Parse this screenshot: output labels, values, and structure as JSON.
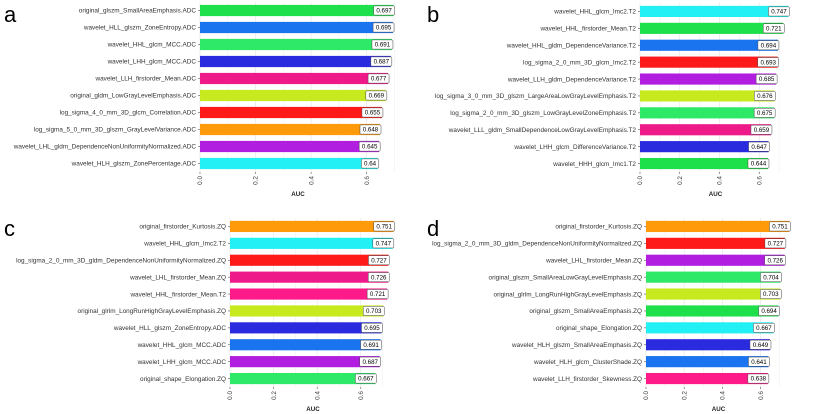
{
  "chart_data": [
    {
      "type": "bar",
      "panel": "a",
      "xlabel": "AUC",
      "xlim": [
        0,
        0.72
      ],
      "xticks": [
        "0.0",
        "0.2",
        "0.4",
        "0.6"
      ],
      "grid": true,
      "categories": [
        "original_glszm_SmallAreaEmphasis.ADC",
        "wavelet_HLL_glszm_ZoneEntropy.ADC",
        "wavelet_HHL_glcm_MCC.ADC",
        "wavelet_LHH_glcm_MCC.ADC",
        "wavelet_LLH_firstorder_Mean.ADC",
        "original_gldm_LowGrayLevelEmphasis.ADC",
        "log_sigma_4_0_mm_3D_glcm_Correlation.ADC",
        "log_sigma_5_0_mm_3D_glszm_GrayLevelVariance.ADC",
        "wavelet_LHL_gldm_DependenceNonUniformityNormalized.ADC",
        "wavelet_HLH_glszm_ZonePercentage.ADC"
      ],
      "values": [
        0.697,
        0.695,
        0.691,
        0.687,
        0.677,
        0.669,
        0.655,
        0.648,
        0.645,
        0.64
      ],
      "value_labels": [
        "0.697",
        "0.695",
        "0.691",
        "0.687",
        "0.677",
        "0.669",
        "0.655",
        "0.648",
        "0.645",
        "0.64"
      ],
      "colors": [
        "#1ee04a",
        "#1a74f0",
        "#2ee868",
        "#2a2adf",
        "#ef1a8a",
        "#c6ea1e",
        "#ff1a1a",
        "#ff9a0a",
        "#b21ee0",
        "#22f0f4"
      ]
    },
    {
      "type": "bar",
      "panel": "b",
      "xlabel": "AUC",
      "xlim": [
        0,
        0.78
      ],
      "xticks": [
        "0.0",
        "0.2",
        "0.4",
        "0.6"
      ],
      "grid": true,
      "categories": [
        "wavelet_HHL_glcm_Imc2.T2",
        "wavelet_HHL_firstorder_Mean.T2",
        "wavelet_HHL_gldm_DependenceVariance.T2",
        "log_sigma_2_0_mm_3D_glcm_Imc2.T2",
        "wavelet_LLH_gldm_DependenceVariance.T2",
        "log_sigma_3_0_mm_3D_glszm_LargeAreaLowGrayLevelEmphasis.T2",
        "log_sigma_2_0_mm_3D_glszm_LowGrayLevelZoneEmphasis.T2",
        "wavelet_LLL_gldm_SmallDependenceLowGrayLevelEmphasis.T2",
        "wavelet_LHH_glcm_DifferenceVariance.T2",
        "wavelet_HHH_glcm_Imc1.T2"
      ],
      "values": [
        0.747,
        0.721,
        0.694,
        0.693,
        0.685,
        0.676,
        0.675,
        0.659,
        0.647,
        0.644
      ],
      "value_labels": [
        "0.747",
        "0.721",
        "0.694",
        "0.693",
        "0.685",
        "0.676",
        "0.675",
        "0.659",
        "0.647",
        "0.644"
      ],
      "colors": [
        "#22f0f4",
        "#1ee04a",
        "#1a74f0",
        "#ff1a1a",
        "#b21ee0",
        "#c6ea1e",
        "#2ee868",
        "#ef1a8a",
        "#2a2adf",
        "#1ee04a"
      ]
    },
    {
      "type": "bar",
      "panel": "c",
      "xlabel": "AUC",
      "xlim": [
        0,
        0.78
      ],
      "xticks": [
        "0.0",
        "0.2",
        "0.4",
        "0.6"
      ],
      "grid": true,
      "categories": [
        "original_firstorder_Kurtosis.ZQ",
        "wavelet_HHL_glcm_Imc2.T2",
        "log_sigma_2_0_mm_3D_gldm_DependenceNonUniformityNormalized.ZQ",
        "wavelet_LHL_firstorder_Mean.ZQ",
        "wavelet_HHL_firstorder_Mean.T2",
        "original_glrlm_LongRunHighGrayLevelEmphasis.ZQ",
        "wavelet_HLL_glszm_ZoneEntropy.ADC",
        "wavelet_HHL_glcm_MCC.ADC",
        "wavelet_LHH_glcm_MCC.ADC",
        "original_shape_Elongation.ZQ"
      ],
      "values": [
        0.751,
        0.747,
        0.727,
        0.726,
        0.721,
        0.703,
        0.695,
        0.691,
        0.687,
        0.667
      ],
      "value_labels": [
        "0.751",
        "0.747",
        "0.727",
        "0.726",
        "0.721",
        "0.703",
        "0.695",
        "0.691",
        "0.687",
        "0.667"
      ],
      "colors": [
        "#ff9a0a",
        "#22f0f4",
        "#ff1a1a",
        "#ef1a8a",
        "#ff1a8a",
        "#c6ea1e",
        "#2a2adf",
        "#1a74f0",
        "#b21ee0",
        "#2ee868"
      ]
    },
    {
      "type": "bar",
      "panel": "d",
      "xlabel": "AUC",
      "xlim": [
        0,
        0.78
      ],
      "xticks": [
        "0.0",
        "0.2",
        "0.4",
        "0.6"
      ],
      "grid": true,
      "categories": [
        "original_firstorder_Kurtosis.ZQ",
        "log_sigma_2_0_mm_3D_gldm_DependenceNonUniformityNormalized.ZQ",
        "wavelet_LHL_firstorder_Mean.ZQ",
        "original_glszm_SmallAreaLowGrayLevelEmphasis.ZQ",
        "original_glrlm_LongRunHighGrayLevelEmphasis.ZQ",
        "original_glszm_SmallAreaEmphasis.ZQ",
        "original_shape_Elongation.ZQ",
        "wavelet_HLH_glszm_SmallAreaEmphasis.ZQ",
        "wavelet_HLH_glcm_ClusterShade.ZQ",
        "wavelet_LLH_firstorder_Skewness.ZQ"
      ],
      "values": [
        0.751,
        0.727,
        0.726,
        0.704,
        0.703,
        0.694,
        0.667,
        0.649,
        0.641,
        0.638
      ],
      "value_labels": [
        "0.751",
        "0.727",
        "0.726",
        "0.704",
        "0.703",
        "0.694",
        "0.667",
        "0.649",
        "0.641",
        "0.638"
      ],
      "colors": [
        "#ff9a0a",
        "#ff1a1a",
        "#b21ee0",
        "#2ee868",
        "#c6ea1e",
        "#1ee04a",
        "#22f0f4",
        "#2a2adf",
        "#1a74f0",
        "#ff1a8a"
      ]
    }
  ]
}
